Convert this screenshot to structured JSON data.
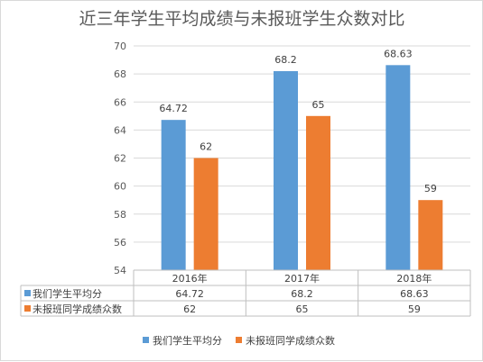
{
  "chart_data": {
    "type": "bar",
    "title": "近三年学生平均成绩与未报班学生众数对比",
    "categories": [
      "2016年",
      "2017年",
      "2018年"
    ],
    "series": [
      {
        "name": "我们学生平均分",
        "values": [
          64.72,
          68.2,
          68.63
        ],
        "labels": [
          "64.72",
          "68.2",
          "68.63"
        ],
        "color": "#5b9bd5"
      },
      {
        "name": "未报班同学成绩众数",
        "values": [
          62,
          65,
          59
        ],
        "labels": [
          "62",
          "65",
          "59"
        ],
        "color": "#ed7d31"
      }
    ],
    "ylim": [
      54,
      70
    ],
    "yticks": [
      54,
      56,
      58,
      60,
      62,
      64,
      66,
      68,
      70
    ],
    "grid": true,
    "legend": "bottom",
    "data_table": true,
    "xlabel": "",
    "ylabel": ""
  }
}
